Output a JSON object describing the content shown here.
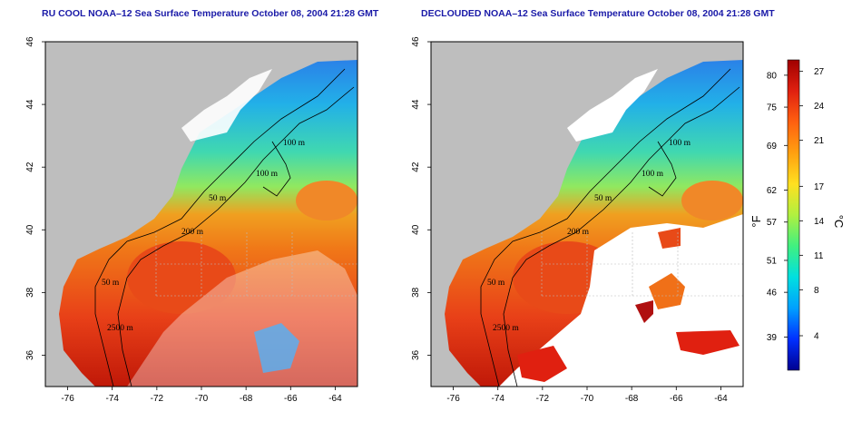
{
  "panels": [
    {
      "title": "RU COOL NOAA–12 Sea Surface Temperature October 08, 2004 21:28 GMT",
      "contour_labels": [
        "100 m",
        "100 m",
        "50 m",
        "200 m",
        "50 m",
        "2500 m"
      ]
    },
    {
      "title": "DECLOUDED NOAA–12 Sea Surface Temperature October 08, 2004 21:28 GMT",
      "contour_labels": [
        "100 m",
        "100 m",
        "50 m",
        "200 m",
        "50 m",
        "2500 m"
      ]
    }
  ],
  "axes": {
    "x_ticks": [
      "-76",
      "-74",
      "-72",
      "-70",
      "-68",
      "-66",
      "-64"
    ],
    "y_ticks": [
      "36",
      "38",
      "40",
      "42",
      "44",
      "46"
    ],
    "xlim": [
      -77,
      -63
    ],
    "ylim": [
      35,
      46
    ]
  },
  "colorbar": {
    "fahrenheit_ticks": [
      "80",
      "75",
      "69",
      "62",
      "57",
      "51",
      "46",
      "39"
    ],
    "celsius_ticks": [
      "27",
      "24",
      "21",
      "17",
      "14",
      "11",
      "8",
      "4"
    ],
    "fahrenheit_unit": "°F",
    "celsius_unit": "°C",
    "range_c": [
      1,
      28
    ],
    "colors": [
      "#000090",
      "#0030ff",
      "#00a0ff",
      "#00e0e0",
      "#40f080",
      "#b0f040",
      "#ffe020",
      "#ffa010",
      "#ff6010",
      "#e02010",
      "#a00000"
    ]
  },
  "colors": {
    "land": "#bebebe",
    "cloud": "#ffffff",
    "title": "#1a1aa8",
    "grid": "#bbbbbb"
  }
}
